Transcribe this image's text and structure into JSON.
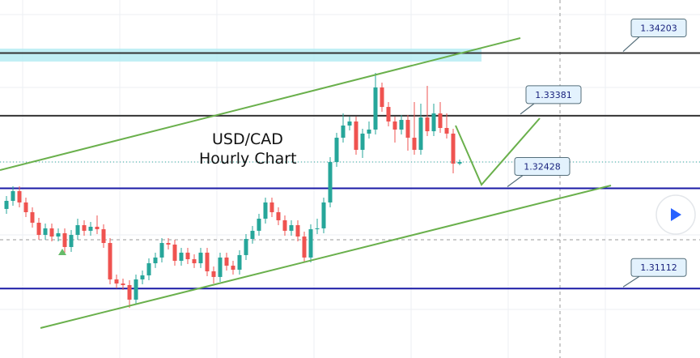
{
  "chart_data": {
    "type": "candlestick",
    "title": [
      "USD/CAD",
      "Hourly Chart"
    ],
    "ylim": [
      1.302,
      1.349
    ],
    "up_color": "#26a69a",
    "down_color": "#ef5350",
    "levels": [
      {
        "value": 1.34203,
        "color": "#333333"
      },
      {
        "value": 1.33381,
        "color": "#333333"
      },
      {
        "value": 1.32428,
        "color": "#1a1aa6"
      },
      {
        "value": 1.31112,
        "color": "#1a1aa6"
      }
    ],
    "candles": [
      [
        1.32157,
        1.32327,
        1.32093,
        1.32263
      ],
      [
        1.32263,
        1.32454,
        1.32199,
        1.32391
      ],
      [
        1.32391,
        1.32454,
        1.32178,
        1.32242
      ],
      [
        1.32242,
        1.32306,
        1.3205,
        1.32114
      ],
      [
        1.32114,
        1.32178,
        1.31912,
        1.31976
      ],
      [
        1.31976,
        1.3204,
        1.31753,
        1.31816
      ],
      [
        1.31816,
        1.31965,
        1.31753,
        1.31902
      ],
      [
        1.31902,
        1.31965,
        1.31731,
        1.31795
      ],
      [
        1.31795,
        1.31902,
        1.31731,
        1.31838
      ],
      [
        1.31838,
        1.31902,
        1.31583,
        1.31657
      ],
      [
        1.31657,
        1.3188,
        1.31593,
        1.31816
      ],
      [
        1.31816,
        1.32029,
        1.31753,
        1.31944
      ],
      [
        1.31944,
        1.32008,
        1.31806,
        1.3187
      ],
      [
        1.3187,
        1.31987,
        1.31806,
        1.31923
      ],
      [
        1.31923,
        1.32072,
        1.31827,
        1.31891
      ],
      [
        1.31891,
        1.31955,
        1.31646,
        1.3171
      ],
      [
        1.3171,
        1.31774,
        1.31168,
        1.31232
      ],
      [
        1.31232,
        1.31295,
        1.31115,
        1.31178
      ],
      [
        1.31178,
        1.31242,
        1.31093,
        1.31157
      ],
      [
        1.31157,
        1.31221,
        1.30859,
        1.30966
      ],
      [
        1.30966,
        1.31295,
        1.30902,
        1.31232
      ],
      [
        1.31232,
        1.31349,
        1.31168,
        1.31285
      ],
      [
        1.31285,
        1.31508,
        1.31221,
        1.31444
      ],
      [
        1.31444,
        1.31583,
        1.31381,
        1.31519
      ],
      [
        1.31519,
        1.31774,
        1.31455,
        1.3171
      ],
      [
        1.3171,
        1.31774,
        1.31625,
        1.31689
      ],
      [
        1.31689,
        1.31753,
        1.31412,
        1.31476
      ],
      [
        1.31476,
        1.31646,
        1.31412,
        1.31583
      ],
      [
        1.31583,
        1.31646,
        1.31434,
        1.31497
      ],
      [
        1.31497,
        1.31561,
        1.31381,
        1.31444
      ],
      [
        1.31444,
        1.31646,
        1.31381,
        1.31583
      ],
      [
        1.31583,
        1.31646,
        1.31274,
        1.31338
      ],
      [
        1.31338,
        1.31402,
        1.31178,
        1.31264
      ],
      [
        1.31264,
        1.31583,
        1.312,
        1.31519
      ],
      [
        1.31519,
        1.31583,
        1.31349,
        1.31412
      ],
      [
        1.31412,
        1.31476,
        1.31295,
        1.31359
      ],
      [
        1.31359,
        1.31614,
        1.31295,
        1.31551
      ],
      [
        1.31551,
        1.31827,
        1.31487,
        1.31763
      ],
      [
        1.31763,
        1.31933,
        1.317,
        1.3187
      ],
      [
        1.3187,
        1.32093,
        1.31806,
        1.32029
      ],
      [
        1.32029,
        1.32306,
        1.31965,
        1.32242
      ],
      [
        1.32242,
        1.32306,
        1.3205,
        1.32114
      ],
      [
        1.32114,
        1.32178,
        1.31944,
        1.32008
      ],
      [
        1.32008,
        1.32072,
        1.31806,
        1.3187
      ],
      [
        1.3187,
        1.32008,
        1.31806,
        1.31944
      ],
      [
        1.31944,
        1.32008,
        1.31731,
        1.31795
      ],
      [
        1.31795,
        1.31859,
        1.31455,
        1.31519
      ],
      [
        1.31519,
        1.31955,
        1.31455,
        1.31891
      ],
      [
        1.31891,
        1.32029,
        1.31827,
        1.31902
      ],
      [
        1.31902,
        1.32306,
        1.31838,
        1.32242
      ],
      [
        1.32242,
        1.32837,
        1.32178,
        1.32773
      ],
      [
        1.32773,
        1.33156,
        1.3271,
        1.33092
      ],
      [
        1.33092,
        1.33411,
        1.33029,
        1.33252
      ],
      [
        1.33252,
        1.33369,
        1.33188,
        1.33305
      ],
      [
        1.33305,
        1.33369,
        1.32869,
        1.32933
      ],
      [
        1.32933,
        1.33209,
        1.32827,
        1.33146
      ],
      [
        1.33146,
        1.33305,
        1.33082,
        1.33199
      ],
      [
        1.33199,
        1.33943,
        1.33135,
        1.33752
      ],
      [
        1.33752,
        1.33815,
        1.33433,
        1.33496
      ],
      [
        1.33496,
        1.3356,
        1.33241,
        1.33305
      ],
      [
        1.33305,
        1.33369,
        1.33029,
        1.33199
      ],
      [
        1.33199,
        1.3339,
        1.33135,
        1.33326
      ],
      [
        1.33326,
        1.3339,
        1.32922,
        1.33092
      ],
      [
        1.33092,
        1.3356,
        1.32869,
        1.32933
      ],
      [
        1.32933,
        1.33539,
        1.32869,
        1.33358
      ],
      [
        1.33358,
        1.33773,
        1.33114,
        1.33177
      ],
      [
        1.33177,
        1.33539,
        1.33114,
        1.33411
      ],
      [
        1.33411,
        1.3356,
        1.33156,
        1.3322
      ],
      [
        1.3322,
        1.33411,
        1.33082,
        1.33146
      ],
      [
        1.33146,
        1.33209,
        1.32625,
        1.32752
      ],
      [
        1.32752,
        1.32805,
        1.32731,
        1.32773
      ]
    ]
  }
}
